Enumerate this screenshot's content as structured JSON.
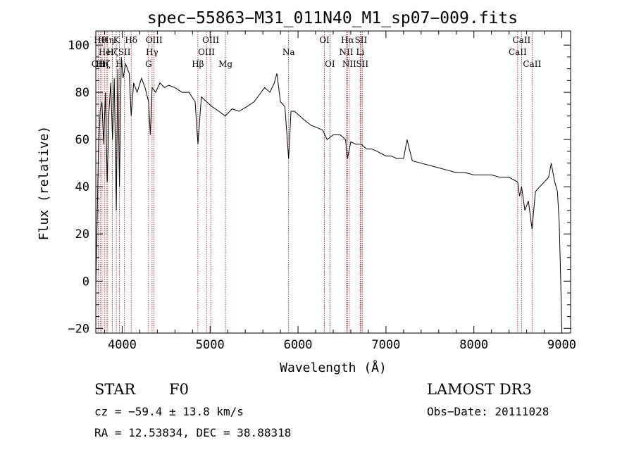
{
  "chart_data": {
    "type": "line",
    "title": "spec−55863−M31_011N40_M1_sp07−009.fits",
    "xlabel": "Wavelength (Å)",
    "ylabel": "Flux (relative)",
    "xlim": [
      3700,
      9100
    ],
    "ylim": [
      -22,
      106
    ],
    "x_ticks": [
      4000,
      5000,
      6000,
      7000,
      8000,
      9000
    ],
    "y_ticks": [
      -20,
      0,
      20,
      40,
      60,
      80,
      100
    ],
    "x_tick_labels": [
      "4000",
      "5000",
      "6000",
      "7000",
      "8000",
      "9000"
    ],
    "y_tick_labels": [
      "−20",
      "0",
      "20",
      "40",
      "60",
      "80",
      "100"
    ],
    "grid": false,
    "line_color": "#000000",
    "marker_color": "#a01010",
    "series": [
      {
        "name": "spectrum",
        "x": [
          3700,
          3715,
          3730,
          3750,
          3770,
          3790,
          3810,
          3830,
          3850,
          3870,
          3890,
          3910,
          3933,
          3950,
          3969,
          3990,
          4010,
          4040,
          4080,
          4102,
          4130,
          4170,
          4220,
          4260,
          4300,
          4320,
          4340,
          4380,
          4430,
          4480,
          4530,
          4600,
          4680,
          4760,
          4830,
          4862,
          4900,
          4960,
          5020,
          5100,
          5172,
          5250,
          5330,
          5420,
          5500,
          5560,
          5620,
          5680,
          5730,
          5760,
          5800,
          5850,
          5893,
          5920,
          5960,
          6020,
          6080,
          6150,
          6220,
          6280,
          6330,
          6400,
          6480,
          6540,
          6563,
          6600,
          6660,
          6720,
          6780,
          6840,
          6900,
          6950,
          7000,
          7060,
          7120,
          7200,
          7240,
          7300,
          7400,
          7500,
          7600,
          7700,
          7800,
          7900,
          8000,
          8100,
          8200,
          8300,
          8400,
          8498,
          8520,
          8542,
          8580,
          8620,
          8662,
          8700,
          8750,
          8800,
          8850,
          8880,
          8920,
          8950,
          8970,
          8985,
          9000
        ],
        "y": [
          -2,
          25,
          55,
          72,
          76,
          58,
          80,
          42,
          72,
          84,
          60,
          86,
          30,
          90,
          40,
          95,
          86,
          92,
          88,
          70,
          84,
          80,
          86,
          82,
          76,
          62,
          82,
          80,
          84,
          82,
          83,
          82,
          80,
          80,
          76,
          58,
          78,
          76,
          74,
          72,
          70,
          73,
          72,
          74,
          76,
          79,
          82,
          80,
          84,
          88,
          76,
          74,
          52,
          72,
          72,
          70,
          68,
          66,
          65,
          64,
          60,
          62,
          62,
          60,
          52,
          59,
          58,
          58,
          56,
          56,
          55,
          54,
          53,
          53,
          52,
          52,
          60,
          51,
          50,
          49,
          48,
          47,
          46,
          46,
          45,
          45,
          45,
          44,
          44,
          42,
          36,
          40,
          30,
          34,
          22,
          38,
          40,
          42,
          44,
          50,
          42,
          38,
          25,
          5,
          -20
        ]
      }
    ],
    "spectral_lines": [
      {
        "wavelength": 3728,
        "label": "OII",
        "row": 3
      },
      {
        "wavelength": 3750,
        "label": "Hθ",
        "row": 1
      },
      {
        "wavelength": 3771,
        "label": "Hη",
        "row": 3
      },
      {
        "wavelength": 3798,
        "label": "Hζ",
        "row": 3
      },
      {
        "wavelength": 3820,
        "label": "HeI",
        "row": 2
      },
      {
        "wavelength": 3835,
        "label": "Hη",
        "row": 1
      },
      {
        "wavelength": 3889,
        "label": "Hζ",
        "row": 2
      },
      {
        "wavelength": 3933,
        "label": "K",
        "row": 1
      },
      {
        "wavelength": 3969,
        "label": "H",
        "row": 3
      },
      {
        "wavelength": 4026,
        "label": "SII",
        "row": 2
      },
      {
        "wavelength": 4102,
        "label": "Hδ",
        "row": 1
      },
      {
        "wavelength": 4300,
        "label": "G",
        "row": 3
      },
      {
        "wavelength": 4340,
        "label": "Hγ",
        "row": 2
      },
      {
        "wavelength": 4363,
        "label": "OIII",
        "row": 1
      },
      {
        "wavelength": 4861,
        "label": "Hβ",
        "row": 3
      },
      {
        "wavelength": 4959,
        "label": "OIII",
        "row": 2
      },
      {
        "wavelength": 5007,
        "label": "OIII",
        "row": 1
      },
      {
        "wavelength": 5175,
        "label": "Mg",
        "row": 3
      },
      {
        "wavelength": 5893,
        "label": "Na",
        "row": 2
      },
      {
        "wavelength": 6300,
        "label": "OI",
        "row": 1
      },
      {
        "wavelength": 6363,
        "label": "OI",
        "row": 3
      },
      {
        "wavelength": 6548,
        "label": "NII",
        "row": 2
      },
      {
        "wavelength": 6563,
        "label": "Hα",
        "row": 1
      },
      {
        "wavelength": 6583,
        "label": "NII",
        "row": 3
      },
      {
        "wavelength": 6708,
        "label": "Li",
        "row": 2
      },
      {
        "wavelength": 6716,
        "label": "SII",
        "row": 1
      },
      {
        "wavelength": 6731,
        "label": "SII",
        "row": 3
      },
      {
        "wavelength": 8498,
        "label": "CaII",
        "row": 2
      },
      {
        "wavelength": 8542,
        "label": "CaII",
        "row": 1
      },
      {
        "wavelength": 8662,
        "label": "CaII",
        "row": 3
      }
    ]
  },
  "info": {
    "class_label": "STAR",
    "subclass": "F0",
    "survey": "LAMOST DR3",
    "cz": "cz = −59.4 ± 13.8 km/s",
    "obs_date": "Obs−Date: 20111028",
    "coords": "RA =  12.53834, DEC =  38.88318"
  }
}
